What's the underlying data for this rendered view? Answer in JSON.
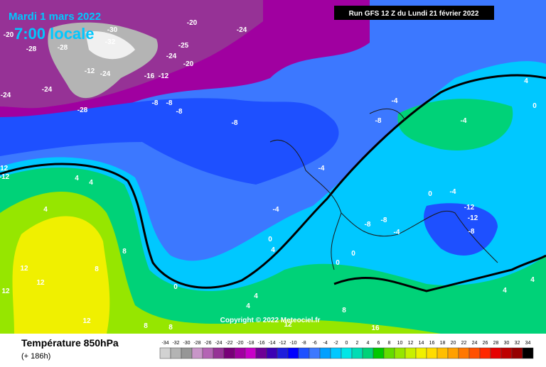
{
  "header": {
    "date": "Mardi 1 mars 2022",
    "time": "7:00 locale",
    "run": "Run GFS 12 Z du Lundi 21 février 2022"
  },
  "copyright": "Copyright © 2022 Meteociel.fr",
  "footer": {
    "title": "Température 850hPa",
    "lead": "(+ 186h)"
  },
  "legend": {
    "ticks": [
      -34,
      -32,
      -30,
      -28,
      -26,
      -24,
      -22,
      -20,
      -18,
      -16,
      -14,
      -12,
      -10,
      -8,
      -6,
      -4,
      -2,
      0,
      2,
      4,
      6,
      8,
      10,
      12,
      14,
      16,
      18,
      20,
      22,
      24,
      26,
      28,
      30,
      32,
      34
    ],
    "colors": [
      "#d2d2d2",
      "#b4b4b4",
      "#969696",
      "#c896c8",
      "#b464b4",
      "#963296",
      "#780078",
      "#a000a0",
      "#c800c8",
      "#6e0096",
      "#3c00b4",
      "#1e1edc",
      "#0000ff",
      "#1e50ff",
      "#3c78ff",
      "#00a0ff",
      "#00c8ff",
      "#00e6e6",
      "#00dcb4",
      "#00d278",
      "#00c800",
      "#64dc00",
      "#96e600",
      "#c8f000",
      "#f0f000",
      "#ffdc00",
      "#ffbe00",
      "#ffa000",
      "#ff7800",
      "#ff5000",
      "#ff2800",
      "#e60000",
      "#be0000",
      "#960000",
      "#000000"
    ]
  },
  "map_labels": [
    -24,
    -20,
    -30,
    -32,
    -28,
    -28,
    -20,
    -12,
    -24,
    -16,
    -12,
    -24,
    -25,
    -20,
    -24,
    -24,
    -28,
    -8,
    -8,
    -8,
    -8,
    -4,
    -8,
    -4,
    -4,
    -4,
    0,
    0,
    -4,
    -12,
    -12,
    -8,
    -8,
    -4,
    -8,
    0,
    0,
    0,
    4,
    4,
    4,
    4,
    8,
    8,
    12,
    12,
    12,
    4,
    0,
    4,
    4,
    8,
    16,
    12,
    4,
    4,
    12,
    8,
    8,
    -12,
    -12
  ]
}
